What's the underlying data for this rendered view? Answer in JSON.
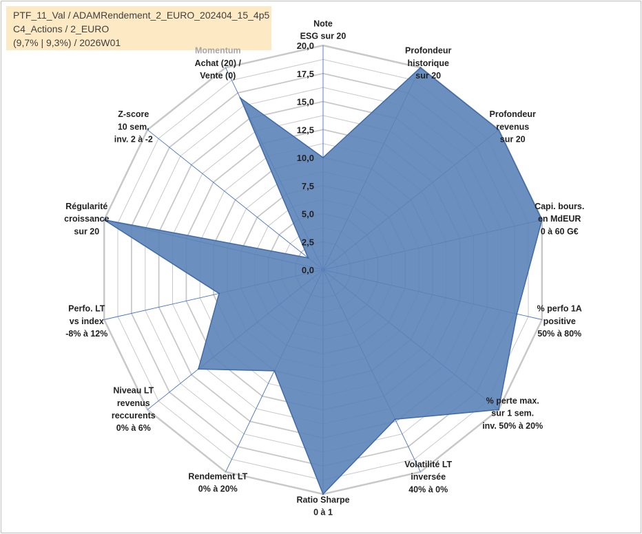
{
  "info": {
    "line1": "PTF_11_Val / ADAMRendement_2_EURO_202404_15_4p5",
    "line2": "C4_Actions / 2_EURO",
    "line3": "(9,7% | 9,3%) / 2026W01"
  },
  "colors": {
    "fill": "#5b83b8",
    "stroke": "#3f6aa8",
    "grid": "#c8c8c8",
    "spoke": "#4472c4",
    "info_bg": "#fde9c4",
    "momentum": "#a6a6a6"
  },
  "chart_data": {
    "type": "radar",
    "title": "",
    "rlim": [
      0,
      20
    ],
    "ticks": [
      "0,0",
      "2,5",
      "5,0",
      "7,5",
      "10,0",
      "12,5",
      "15,0",
      "17,5",
      "20,0"
    ],
    "grid": true,
    "axes": [
      {
        "lines": [
          "Note",
          "ESG sur 20"
        ],
        "value": 10.0
      },
      {
        "lines": [
          "Profondeur",
          "historique",
          "sur 20"
        ],
        "value": 20.0
      },
      {
        "lines": [
          "Profondeur",
          "revenus",
          "sur 20"
        ],
        "value": 20.0
      },
      {
        "lines": [
          "Capi. bours.",
          "en MdEUR",
          "0 à 60 G€"
        ],
        "value": 20.0
      },
      {
        "lines": [
          "% perfo 1A",
          "positive",
          "50% à 80%"
        ],
        "value": 17.7
      },
      {
        "lines": [
          "% perte max.",
          "sur 1 sem.",
          "inv. 50% à 20%"
        ],
        "value": 20.0
      },
      {
        "lines": [
          "Volatilité LT",
          "inversée",
          "40% à 0%"
        ],
        "value": 14.8
      },
      {
        "lines": [
          "Ratio Sharpe",
          "0 à 1"
        ],
        "value": 20.0
      },
      {
        "lines": [
          "Rendement LT",
          "0% à 20%"
        ],
        "value": 10.0
      },
      {
        "lines": [
          "Niveau LT",
          "revenus",
          "reccurents",
          "0% à 6%"
        ],
        "value": 14.2
      },
      {
        "lines": [
          "Perfo. LT",
          "vs index",
          "-8% à 12%"
        ],
        "value": 9.5
      },
      {
        "lines": [
          "Régularité",
          "croissance",
          "sur 20"
        ],
        "value": 20.0
      },
      {
        "lines": [
          "Z-score",
          "10 sem.",
          "inv. 2 à -2"
        ],
        "value": 1.7
      },
      {
        "lines": [
          "Momentum",
          "Achat (20) /",
          "Vente (0)"
        ],
        "value": 17.0
      }
    ]
  }
}
